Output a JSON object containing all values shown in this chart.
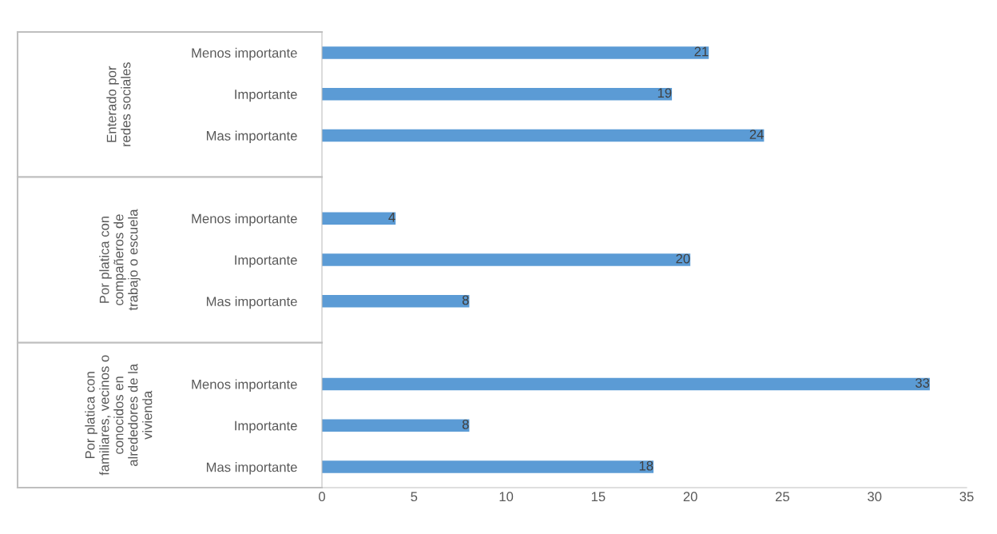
{
  "chart_data": {
    "type": "bar",
    "orientation": "horizontal",
    "categories": [
      "Menos importante",
      "Importante",
      "Mas importante",
      null,
      "Menos importante",
      "Importante",
      "Mas importante",
      null,
      "Menos importante",
      "Importante",
      "Mas importante"
    ],
    "values": [
      21,
      19,
      24,
      null,
      4,
      20,
      8,
      null,
      33,
      8,
      18
    ],
    "color": "#5b9bd5",
    "xlim": [
      0,
      35
    ],
    "xticks": [
      0,
      5,
      10,
      15,
      20,
      25,
      30,
      35
    ],
    "data_labels": true,
    "grid": false,
    "annotations": [
      "Enterado por\nredes sociales",
      "Por platica con\ncompañeros de\ntrabajo o escuela",
      "Por platica con\nfamiliares, vecinos o\nconocidos en\nalrededores de la\nvivienda"
    ]
  }
}
